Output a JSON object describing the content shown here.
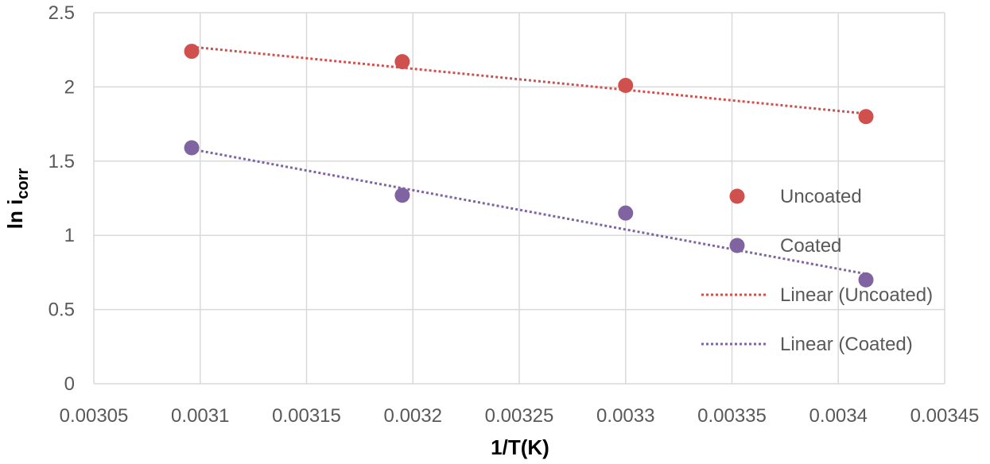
{
  "chart_data": {
    "type": "scatter",
    "title": "",
    "xlabel": "1/T(K)",
    "ylabel_main": "ln i",
    "ylabel_sub": "corr",
    "xlim": [
      0.00305,
      0.00345
    ],
    "ylim": [
      0,
      2.5
    ],
    "xticks": [
      0.00305,
      0.0031,
      0.00315,
      0.0032,
      0.00325,
      0.0033,
      0.00335,
      0.0034,
      0.00345
    ],
    "xtick_labels": [
      "0.00305",
      "0.0031",
      "0.00315",
      "0.0032",
      "0.00325",
      "0.0033",
      "0.00335",
      "0.0034",
      "0.00345"
    ],
    "yticks": [
      0,
      0.5,
      1,
      1.5,
      2,
      2.5
    ],
    "ytick_labels": [
      "0",
      "0.5",
      "1",
      "1.5",
      "2",
      "2.5"
    ],
    "grid": true,
    "legend_position": "right",
    "series": [
      {
        "name": "Uncoated",
        "color": "#d0504d",
        "x": [
          0.003096,
          0.003195,
          0.0033,
          0.003413
        ],
        "y": [
          2.24,
          2.17,
          2.01,
          1.8
        ]
      },
      {
        "name": "Coated",
        "color": "#8064a2",
        "x": [
          0.003096,
          0.003195,
          0.0033,
          0.003413
        ],
        "y": [
          1.59,
          1.27,
          1.15,
          0.7
        ]
      }
    ],
    "trendlines": [
      {
        "name": "Linear (Uncoated)",
        "color": "#d0504d",
        "x": [
          0.003096,
          0.003413
        ],
        "y": [
          2.27,
          1.82
        ]
      },
      {
        "name": "Linear (Coated)",
        "color": "#8064a2",
        "x": [
          0.003096,
          0.003413
        ],
        "y": [
          1.58,
          0.74
        ]
      }
    ],
    "legend": [
      {
        "label": "Uncoated",
        "kind": "marker",
        "color": "#d0504d"
      },
      {
        "label": "Coated",
        "kind": "marker",
        "color": "#8064a2"
      },
      {
        "label": "Linear (Uncoated)",
        "kind": "dotted-line",
        "color": "#d0504d"
      },
      {
        "label": "Linear (Coated)",
        "kind": "dotted-line",
        "color": "#8064a2"
      }
    ]
  }
}
